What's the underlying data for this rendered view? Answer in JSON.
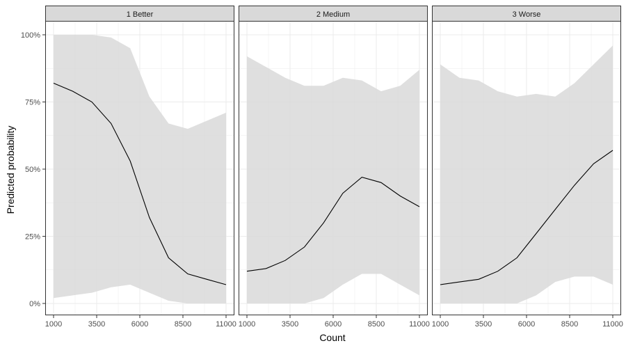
{
  "chart_data": {
    "type": "area",
    "xlabel": "Count",
    "ylabel": "Predicted probability",
    "xlim": [
      1000,
      11000
    ],
    "ylim": [
      0,
      1
    ],
    "x_ticks": [
      1000,
      3500,
      6000,
      8500,
      11000
    ],
    "x_tick_labels": [
      "1000",
      "3500",
      "6000",
      "8500",
      "11000"
    ],
    "y_ticks": [
      0,
      0.25,
      0.5,
      0.75,
      1.0
    ],
    "y_tick_labels": [
      "0%",
      "25%",
      "50%",
      "75%",
      "100%"
    ],
    "grid": true,
    "x": [
      1000,
      2111,
      3222,
      4333,
      5444,
      6556,
      7667,
      8778,
      9889,
      11000
    ],
    "panels": [
      {
        "name": "1 Better",
        "fit": [
          0.82,
          0.79,
          0.75,
          0.67,
          0.53,
          0.32,
          0.17,
          0.11,
          0.09,
          0.07
        ],
        "lower": [
          0.02,
          0.03,
          0.04,
          0.06,
          0.07,
          0.04,
          0.01,
          0.0,
          0.0,
          0.0
        ],
        "upper": [
          1.0,
          1.0,
          1.0,
          0.99,
          0.95,
          0.77,
          0.67,
          0.65,
          0.68,
          0.71
        ]
      },
      {
        "name": "2 Medium",
        "fit": [
          0.12,
          0.13,
          0.16,
          0.21,
          0.3,
          0.41,
          0.47,
          0.45,
          0.4,
          0.36
        ],
        "lower": [
          0.0,
          0.0,
          0.0,
          0.0,
          0.02,
          0.07,
          0.11,
          0.11,
          0.07,
          0.03
        ],
        "upper": [
          0.92,
          0.88,
          0.84,
          0.81,
          0.81,
          0.84,
          0.83,
          0.79,
          0.81,
          0.87
        ]
      },
      {
        "name": "3 Worse",
        "fit": [
          0.07,
          0.08,
          0.09,
          0.12,
          0.17,
          0.26,
          0.35,
          0.44,
          0.52,
          0.57
        ],
        "lower": [
          0.0,
          0.0,
          0.0,
          0.0,
          0.0,
          0.03,
          0.08,
          0.1,
          0.1,
          0.07
        ],
        "upper": [
          0.89,
          0.84,
          0.83,
          0.79,
          0.77,
          0.78,
          0.77,
          0.82,
          0.89,
          0.96
        ]
      }
    ],
    "colors": {
      "ribbon": "#d9d9d9",
      "line": "#000000",
      "grid": "#ebebeb",
      "strip_fill": "#d9d9d9",
      "panel_border": "#333333",
      "background": "#ffffff"
    }
  }
}
